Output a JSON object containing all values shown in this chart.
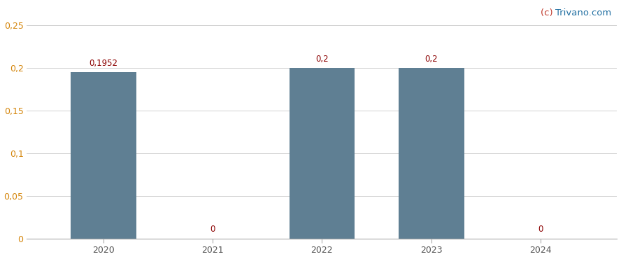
{
  "categories": [
    2020,
    2021,
    2022,
    2023,
    2024
  ],
  "values": [
    0.1952,
    0,
    0.2,
    0.2,
    0
  ],
  "bar_labels": [
    "0,1952",
    "0",
    "0,2",
    "0,2",
    "0"
  ],
  "bar_color": "#5f7f93",
  "background_color": "#ffffff",
  "grid_color": "#d0d0d0",
  "ylim": [
    0,
    0.25
  ],
  "yticks": [
    0,
    0.05,
    0.1,
    0.15,
    0.2,
    0.25
  ],
  "ytick_labels": [
    "0",
    "0,05",
    "0,1",
    "0,15",
    "0,2",
    "0,25"
  ],
  "watermark_c_text": "(c) ",
  "watermark_rest_text": "Trivano.com",
  "watermark_color_c": "#c0392b",
  "watermark_color_rest": "#2471a3",
  "bar_width": 0.6,
  "label_fontsize": 8.5,
  "tick_fontsize": 9,
  "watermark_fontsize": 9.5,
  "label_color": "#8B0000",
  "ytick_color": "#d4850a",
  "xtick_color": "#555555"
}
